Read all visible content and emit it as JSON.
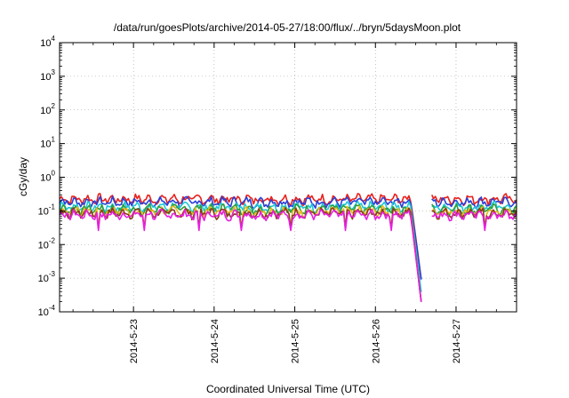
{
  "chart_data": {
    "type": "line",
    "title": "/data/run/goesPlots/archive/2014-05-27/18:00/flux/../bryn/5daysMoon.plot",
    "xlabel": "Coordinated Universal Time (UTC)",
    "ylabel": "cGy/day",
    "yscale": "log",
    "ylim": [
      0.0001,
      10000
    ],
    "xlim": [
      "2014-05-22 02:00",
      "2014-05-27 18:00"
    ],
    "grid": true,
    "yticks": [
      {
        "base": "10",
        "exp": "-4"
      },
      {
        "base": "10",
        "exp": "-3"
      },
      {
        "base": "10",
        "exp": "-2"
      },
      {
        "base": "10",
        "exp": "-1"
      },
      {
        "base": "10",
        "exp": "0"
      },
      {
        "base": "10",
        "exp": "1"
      },
      {
        "base": "10",
        "exp": "2"
      },
      {
        "base": "10",
        "exp": "3"
      },
      {
        "base": "10",
        "exp": "4"
      }
    ],
    "xticks": [
      {
        "label": "2014-5-23",
        "date": "2014-05-23"
      },
      {
        "label": "2014-5-24",
        "date": "2014-05-24"
      },
      {
        "label": "2014-5-25",
        "date": "2014-05-25"
      },
      {
        "label": "2014-5-26",
        "date": "2014-05-26"
      },
      {
        "label": "2014-5-27",
        "date": "2014-05-27"
      }
    ],
    "series": [
      {
        "color": "#e8201c",
        "baseline": 0.22,
        "dip_min": 0.0005
      },
      {
        "color": "#2a3fd6",
        "baseline": 0.18,
        "dip_min": 0.0005
      },
      {
        "color": "#1ec8d6",
        "baseline": 0.13,
        "dip_min": 0.0002
      },
      {
        "color": "#2e9e3a",
        "baseline": 0.11,
        "dip_min": 0.0001
      },
      {
        "color": "#e8b81c",
        "baseline": 0.095,
        "dip_min": 0.0001
      },
      {
        "color": "#8a3a1c",
        "baseline": 0.085,
        "dip_min": 0.0001
      },
      {
        "color": "#e820e0",
        "baseline": 0.075,
        "dip_min": 0.0001
      }
    ],
    "gap": {
      "start": "2014-05-26 14:00",
      "end": "2014-05-26 16:30"
    },
    "dropout": {
      "start": "2014-05-26 10:30",
      "bottom": "2014-05-26 14:00"
    }
  }
}
